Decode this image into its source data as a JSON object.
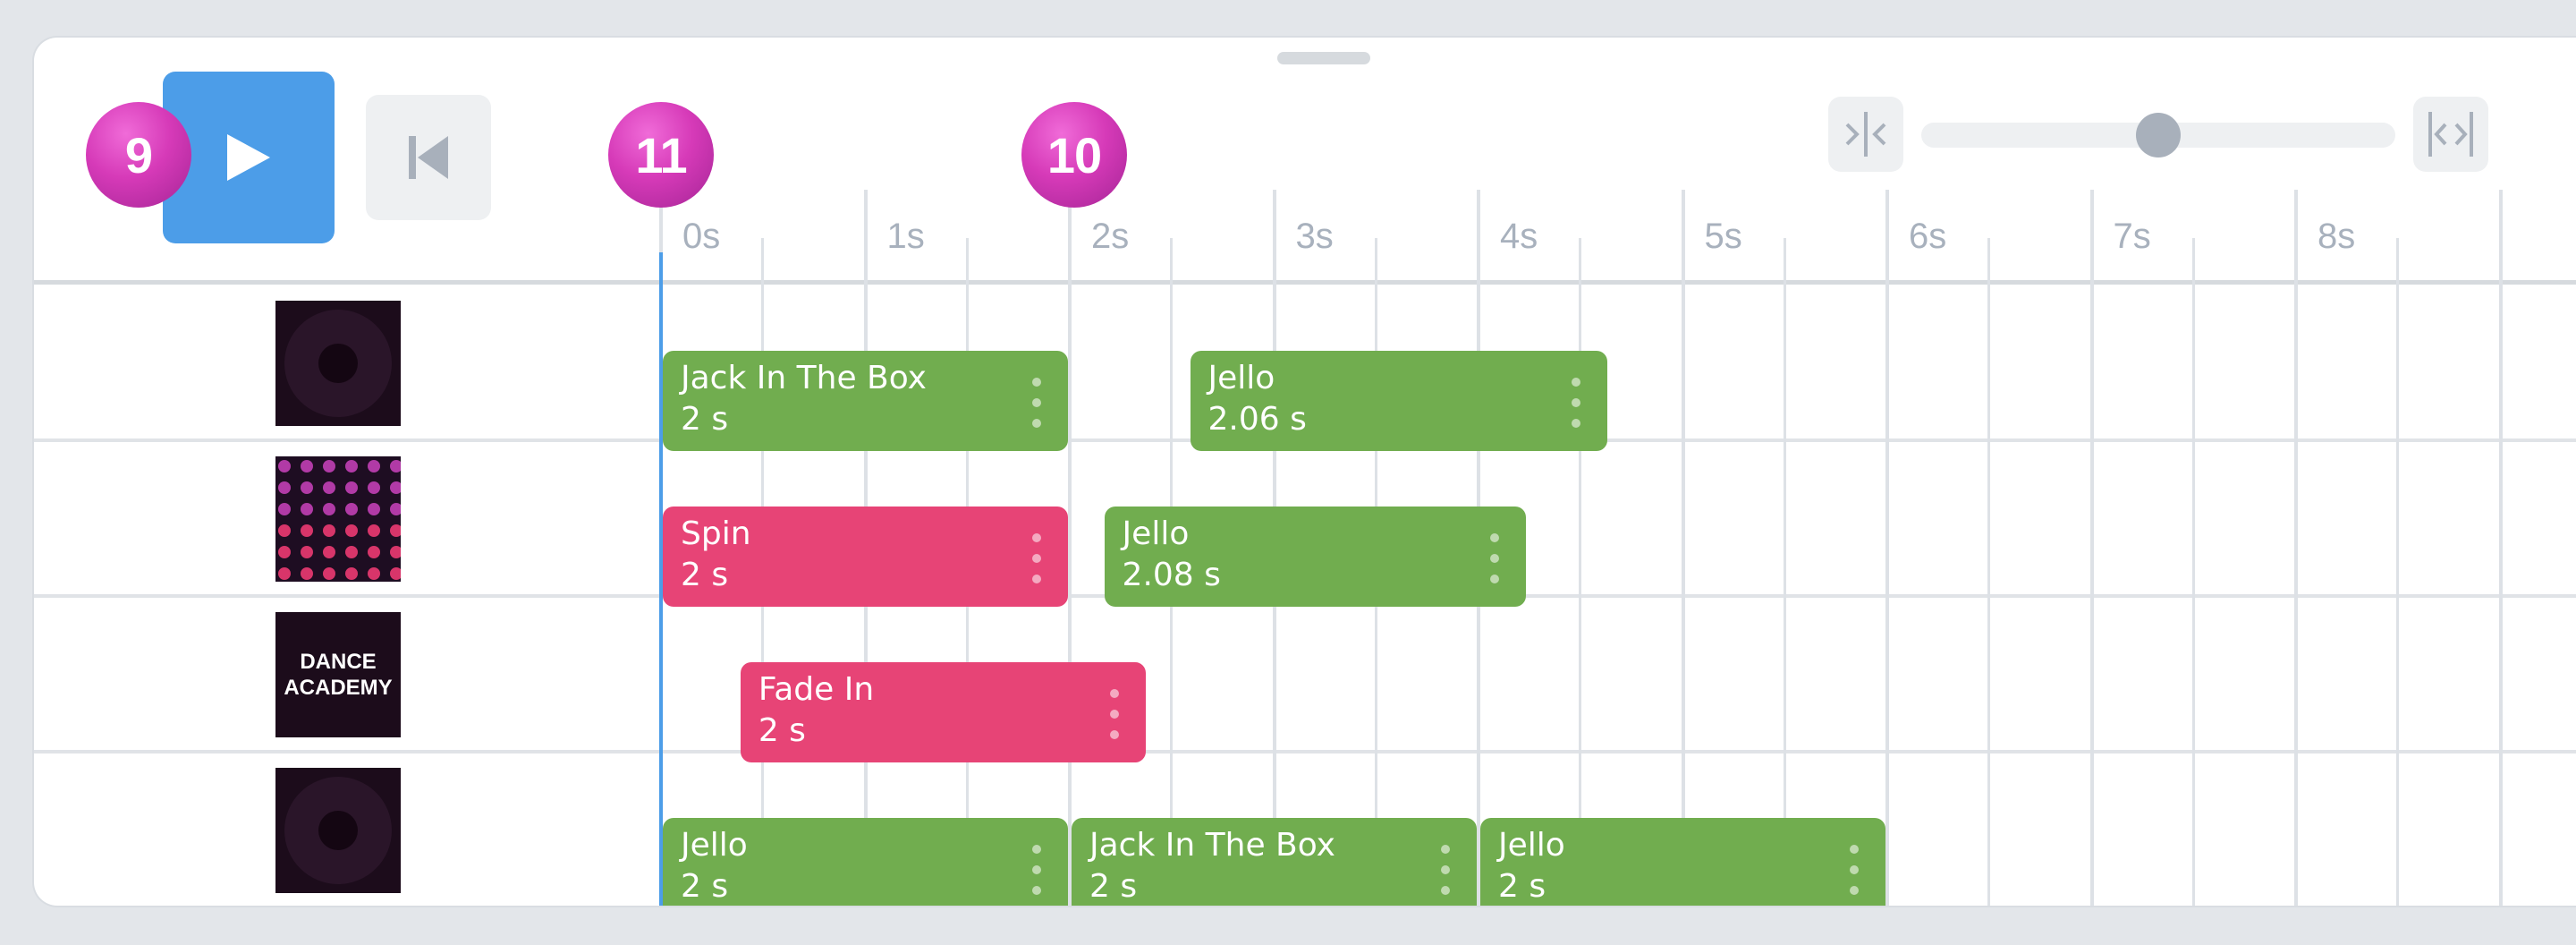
{
  "toolbar": {
    "play_icon": "play-icon",
    "restart_icon": "skip-to-start-icon",
    "zoom_in_icon": "collapse-arrows-icon",
    "zoom_out_icon": "expand-arrows-icon",
    "zoom_level": 0.5
  },
  "markers": [
    {
      "label": "9"
    },
    {
      "label": "11"
    },
    {
      "label": "10"
    }
  ],
  "ruler": {
    "ticks": [
      "0s",
      "1s",
      "2s",
      "3s",
      "4s",
      "5s",
      "6s",
      "7s",
      "8s"
    ]
  },
  "tracks": [
    {
      "thumbnail": "circle-image",
      "clips": [
        {
          "name": "Jack In The Box",
          "duration": "2 s",
          "start": 0,
          "length": 2,
          "color": "#71ad4f"
        },
        {
          "name": "Jello",
          "duration": "2.06 s",
          "start": 2.58,
          "length": 2.06,
          "color": "#71ad4f"
        }
      ]
    },
    {
      "thumbnail": "dots-image",
      "clips": [
        {
          "name": "Spin",
          "duration": "2 s",
          "start": 0,
          "length": 2,
          "color": "#e74476"
        },
        {
          "name": "Jello",
          "duration": "2.08 s",
          "start": 2.16,
          "length": 2.08,
          "color": "#71ad4f"
        }
      ]
    },
    {
      "thumbnail": "logo-image",
      "thumbnail_text": [
        "DANCE",
        "ACADEMY"
      ],
      "clips": [
        {
          "name": "Fade In",
          "duration": "2 s",
          "start": 0.38,
          "length": 2,
          "color": "#e74476"
        }
      ]
    },
    {
      "thumbnail": "circle-image",
      "clips": [
        {
          "name": "Jello",
          "duration": "2 s",
          "start": 0,
          "length": 2,
          "color": "#71ad4f"
        },
        {
          "name": "Jack In The Box",
          "duration": "2 s",
          "start": 2,
          "length": 2,
          "color": "#71ad4f"
        },
        {
          "name": "Jello",
          "duration": "2 s",
          "start": 4,
          "length": 2,
          "color": "#71ad4f"
        }
      ]
    }
  ]
}
